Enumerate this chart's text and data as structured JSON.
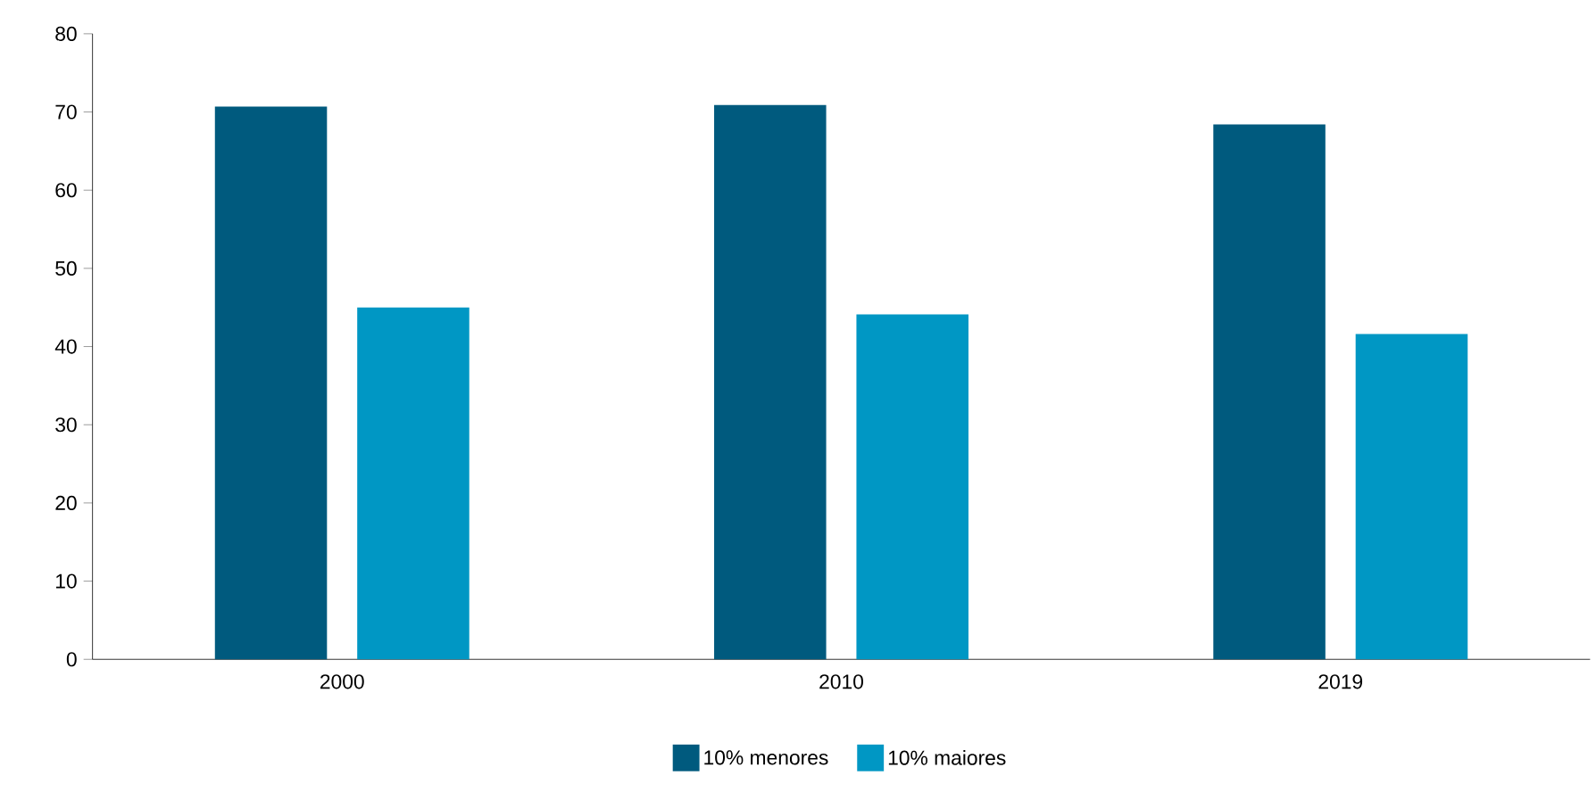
{
  "chart_data": {
    "type": "bar",
    "categories": [
      "2000",
      "2010",
      "2019"
    ],
    "series": [
      {
        "name": "10% menores",
        "color": "#005a7e",
        "values": [
          70.7,
          70.9,
          68.4
        ]
      },
      {
        "name": "10% maiores",
        "color": "#0097c4",
        "values": [
          45.0,
          44.1,
          41.6
        ]
      }
    ],
    "ylim": [
      0,
      80
    ],
    "yticks": [
      0,
      10,
      20,
      30,
      40,
      50,
      60,
      70,
      80
    ],
    "legend": "bottom"
  }
}
